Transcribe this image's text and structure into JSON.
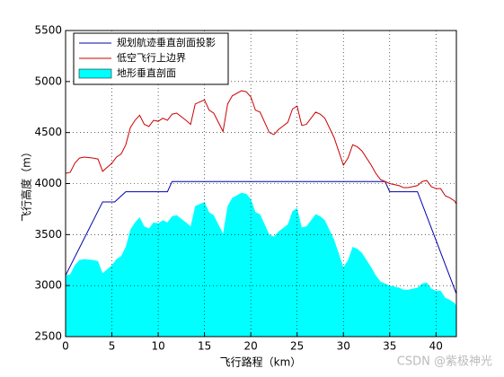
{
  "chart_data": {
    "type": "line",
    "xlabel": "飞行路程（km）",
    "ylabel": "飞行高度（m）",
    "xlim": [
      0,
      42.2
    ],
    "ylim": [
      2500,
      5500
    ],
    "xticks": [
      0,
      5,
      10,
      15,
      20,
      25,
      30,
      35,
      40
    ],
    "yticks": [
      2500,
      3000,
      3500,
      4000,
      4500,
      5000,
      5500
    ],
    "grid": true,
    "legend": "upper left",
    "watermark": "CSDN @紫极神光",
    "series": [
      {
        "name": "规划航迹垂直剖面投影",
        "color": "#0000b0",
        "kind": "line",
        "x": [
          0,
          4,
          5.3,
          6.5,
          11,
          11.5,
          34.5,
          35,
          38,
          42.2
        ],
        "values": [
          3100,
          3820,
          3820,
          3920,
          3920,
          4020,
          4020,
          3920,
          3920,
          2920
        ]
      },
      {
        "name": "低空飞行上边界",
        "color": "#cc0000",
        "kind": "line",
        "x": [
          0,
          0.5,
          1,
          1.5,
          2,
          3,
          3.5,
          4,
          5,
          5.5,
          6,
          6.5,
          7,
          7.5,
          8,
          8.5,
          9,
          9.5,
          10,
          10.5,
          11,
          11.5,
          12,
          13,
          13.5,
          14,
          15,
          15.5,
          16,
          17,
          17.5,
          18,
          19,
          19.5,
          20,
          20.5,
          21,
          22,
          22.5,
          23,
          24,
          24.5,
          25,
          25.5,
          26,
          27,
          27.5,
          28,
          29,
          30,
          30.5,
          31,
          31.5,
          32,
          33,
          33.5,
          34,
          35,
          36,
          36.5,
          37,
          37.5,
          38,
          38.5,
          39,
          39.5,
          40,
          40.5,
          41,
          41.5,
          42,
          42.2
        ],
        "values": [
          4100,
          4110,
          4200,
          4250,
          4260,
          4250,
          4240,
          4120,
          4200,
          4260,
          4290,
          4380,
          4550,
          4620,
          4670,
          4580,
          4560,
          4620,
          4610,
          4640,
          4620,
          4680,
          4690,
          4620,
          4580,
          4780,
          4820,
          4720,
          4690,
          4510,
          4780,
          4860,
          4910,
          4900,
          4850,
          4720,
          4700,
          4500,
          4480,
          4530,
          4600,
          4730,
          4760,
          4570,
          4580,
          4700,
          4680,
          4640,
          4450,
          4180,
          4250,
          4380,
          4360,
          4320,
          4180,
          4100,
          4040,
          4000,
          3980,
          3960,
          3960,
          3970,
          3980,
          4020,
          4030,
          3970,
          3950,
          3950,
          3880,
          3860,
          3830,
          3800
        ]
      },
      {
        "name": "地形垂直剖面",
        "color": "#00ffff",
        "kind": "area",
        "x": [
          0,
          0.5,
          1,
          1.5,
          2,
          3,
          3.5,
          4,
          5,
          5.5,
          6,
          6.5,
          7,
          7.5,
          8,
          8.5,
          9,
          9.5,
          10,
          10.5,
          11,
          11.5,
          12,
          13,
          13.5,
          14,
          15,
          15.5,
          16,
          17,
          17.5,
          18,
          19,
          19.5,
          20,
          20.5,
          21,
          22,
          22.5,
          23,
          24,
          24.5,
          25,
          25.5,
          26,
          27,
          27.5,
          28,
          29,
          30,
          30.5,
          31,
          31.5,
          32,
          33,
          33.5,
          34,
          35,
          36,
          36.5,
          37,
          37.5,
          38,
          38.5,
          39,
          39.5,
          40,
          40.5,
          41,
          41.5,
          42,
          42.2
        ],
        "values": [
          3100,
          3110,
          3200,
          3250,
          3260,
          3250,
          3240,
          3120,
          3200,
          3260,
          3290,
          3380,
          3550,
          3620,
          3670,
          3580,
          3560,
          3620,
          3610,
          3640,
          3620,
          3680,
          3690,
          3620,
          3580,
          3780,
          3820,
          3720,
          3690,
          3510,
          3780,
          3860,
          3910,
          3900,
          3850,
          3720,
          3700,
          3500,
          3480,
          3530,
          3600,
          3730,
          3760,
          3570,
          3580,
          3700,
          3680,
          3640,
          3450,
          3180,
          3250,
          3380,
          3360,
          3320,
          3180,
          3100,
          3040,
          3000,
          2980,
          2960,
          2960,
          2970,
          2980,
          3020,
          3030,
          2970,
          2950,
          2950,
          2880,
          2860,
          2830,
          2800
        ]
      }
    ]
  }
}
